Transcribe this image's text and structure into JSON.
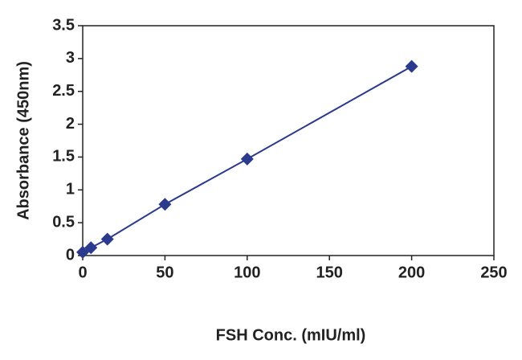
{
  "chart_data": {
    "type": "line",
    "x_label": "FSH Conc. (mIU/ml)",
    "y_label": "Absorbance (450nm)",
    "series": [
      {
        "name": "FSH",
        "color": "#2b3a8c",
        "x": [
          0,
          5,
          15,
          50,
          100,
          200
        ],
        "values": [
          0.05,
          0.12,
          0.25,
          0.78,
          1.47,
          2.88
        ]
      }
    ],
    "xlim": [
      0,
      250
    ],
    "xticks": [
      0,
      50,
      100,
      150,
      200,
      250
    ],
    "ylim": [
      0,
      3.5
    ],
    "yticks": [
      0,
      0.5,
      1,
      1.5,
      2,
      2.5,
      3,
      3.5
    ],
    "grid": false,
    "markers": "diamond"
  }
}
